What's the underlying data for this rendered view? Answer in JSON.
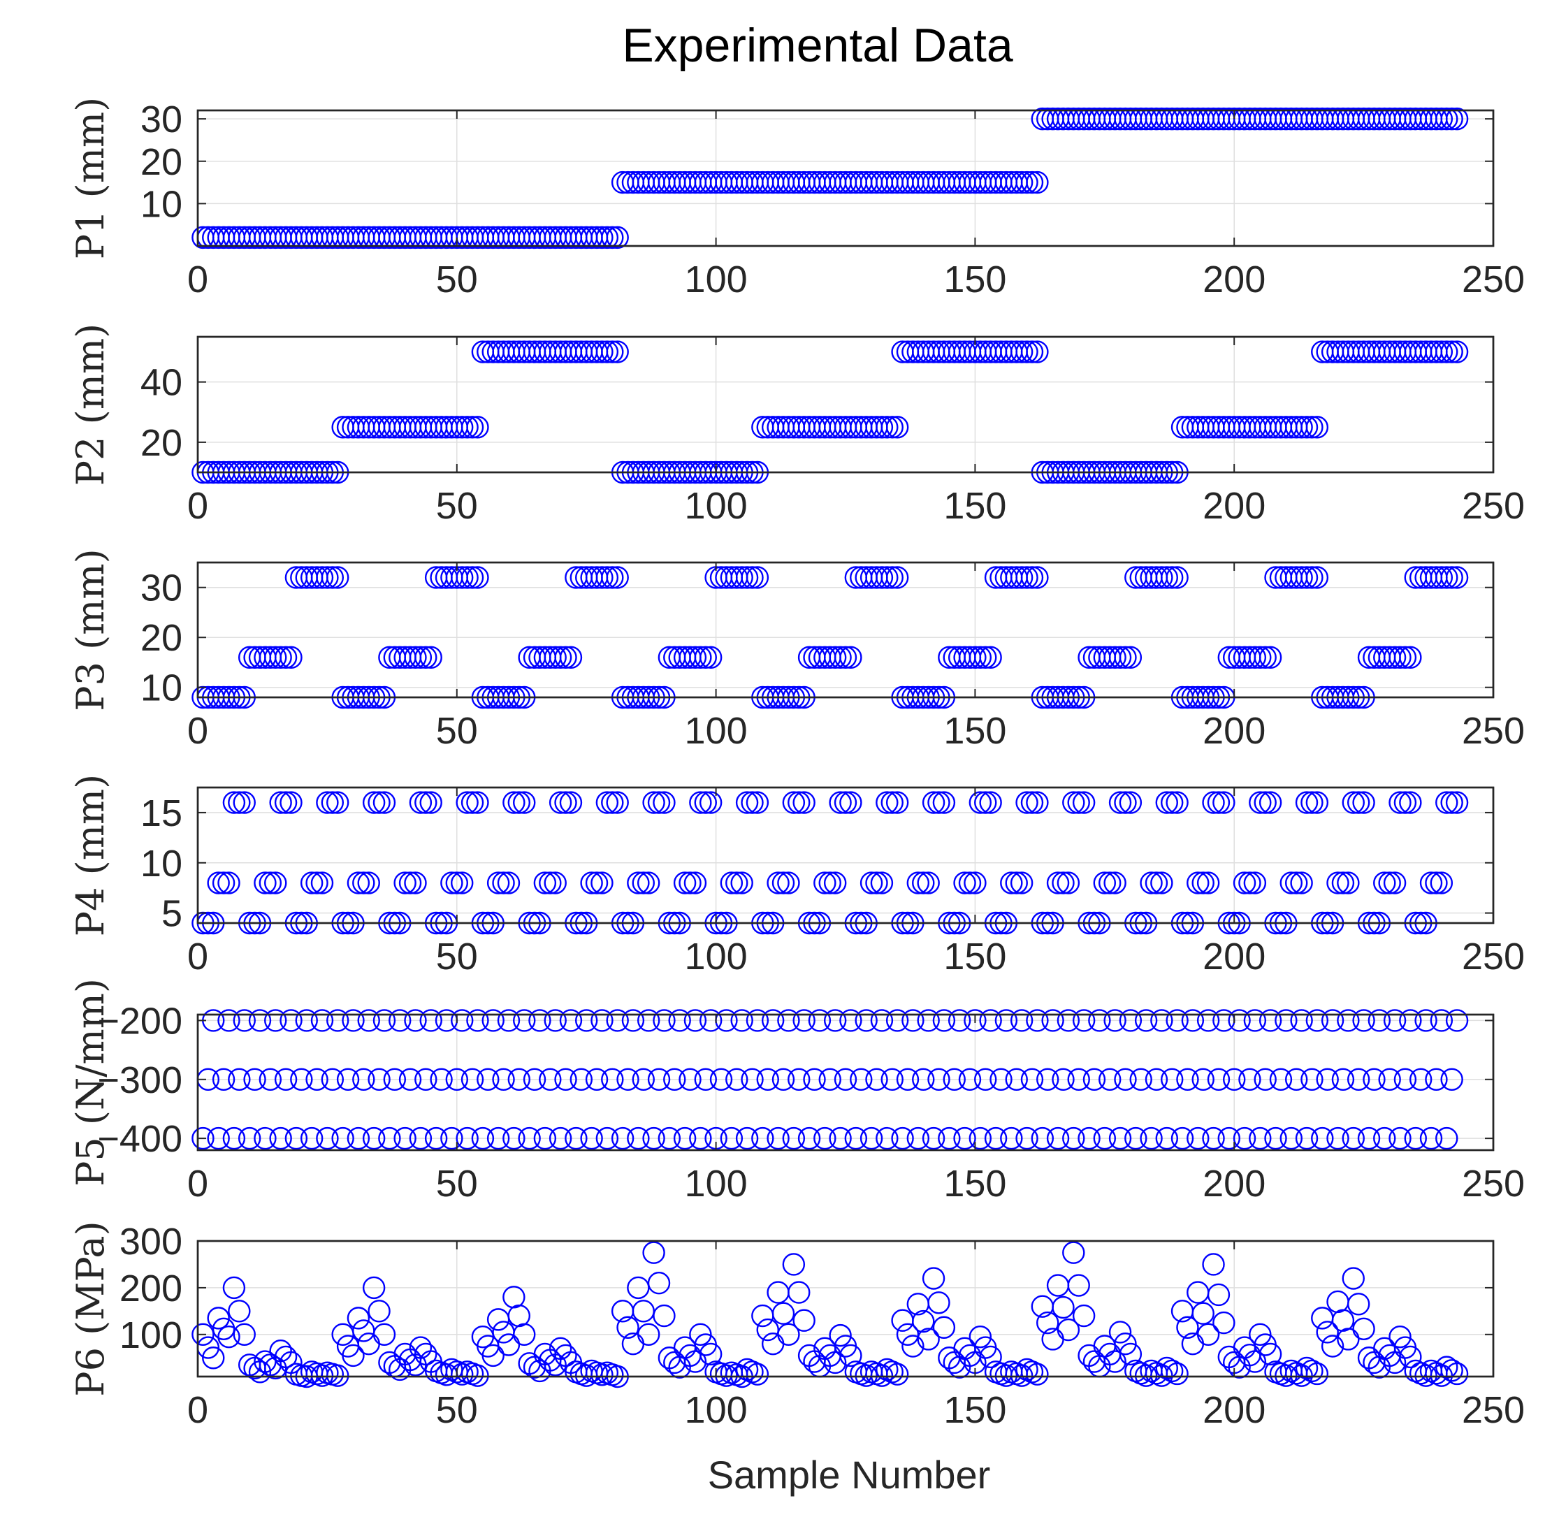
{
  "figure": {
    "title": "Experimental Data",
    "xlabel": "Sample Number",
    "marker_color": "#0000ff"
  },
  "chart_data": [
    {
      "id": "p1",
      "type": "scatter",
      "marker": "circle",
      "ylabel": "P1 (mm)",
      "xlim": [
        0,
        250
      ],
      "ylim": [
        0,
        32
      ],
      "xticks": [
        0,
        50,
        100,
        150,
        200,
        250
      ],
      "yticks": [
        10,
        20,
        30
      ],
      "grid": true,
      "series": [
        {
          "name": "P1",
          "segments": [
            {
              "x_start": 1,
              "x_end": 81,
              "y": 2
            },
            {
              "x_start": 82,
              "x_end": 162,
              "y": 15
            },
            {
              "x_start": 163,
              "x_end": 243,
              "y": 30
            }
          ]
        }
      ]
    },
    {
      "id": "p2",
      "type": "scatter",
      "marker": "circle",
      "ylabel": "P2 (mm)",
      "xlim": [
        0,
        250
      ],
      "ylim": [
        10,
        55
      ],
      "xticks": [
        0,
        50,
        100,
        150,
        200,
        250
      ],
      "yticks": [
        20,
        40
      ],
      "grid": true,
      "series": [
        {
          "name": "P2",
          "segments": [
            {
              "x_start": 1,
              "x_end": 27,
              "y": 10
            },
            {
              "x_start": 28,
              "x_end": 54,
              "y": 25
            },
            {
              "x_start": 55,
              "x_end": 81,
              "y": 50
            },
            {
              "x_start": 82,
              "x_end": 108,
              "y": 10
            },
            {
              "x_start": 109,
              "x_end": 135,
              "y": 25
            },
            {
              "x_start": 136,
              "x_end": 162,
              "y": 50
            },
            {
              "x_start": 163,
              "x_end": 189,
              "y": 10
            },
            {
              "x_start": 190,
              "x_end": 216,
              "y": 25
            },
            {
              "x_start": 217,
              "x_end": 243,
              "y": 50
            }
          ]
        }
      ]
    },
    {
      "id": "p3",
      "type": "scatter",
      "marker": "circle",
      "ylabel": "P3 (mm)",
      "xlim": [
        0,
        250
      ],
      "ylim": [
        8,
        35
      ],
      "xticks": [
        0,
        50,
        100,
        150,
        200,
        250
      ],
      "yticks": [
        10,
        20,
        30
      ],
      "grid": true,
      "series": [
        {
          "name": "P3",
          "repeating_pattern": {
            "levels": [
              8,
              16,
              32
            ],
            "run_length": 9,
            "x_start": 1,
            "x_end": 243
          }
        }
      ]
    },
    {
      "id": "p4",
      "type": "scatter",
      "marker": "circle",
      "ylabel": "P4 (mm)",
      "xlim": [
        0,
        250
      ],
      "ylim": [
        4,
        17.5
      ],
      "xticks": [
        0,
        50,
        100,
        150,
        200,
        250
      ],
      "yticks": [
        5,
        10,
        15
      ],
      "grid": true,
      "series": [
        {
          "name": "P4",
          "repeating_pattern": {
            "levels": [
              4,
              8,
              16
            ],
            "run_length": 3,
            "x_start": 1,
            "x_end": 243
          }
        }
      ]
    },
    {
      "id": "p5",
      "type": "scatter",
      "marker": "circle",
      "ylabel": "P5 (N/mm)",
      "xlim": [
        0,
        250
      ],
      "ylim": [
        -420,
        -190
      ],
      "xticks": [
        0,
        50,
        100,
        150,
        200,
        250
      ],
      "yticks": [
        -400,
        -300,
        -200
      ],
      "grid": true,
      "series": [
        {
          "name": "P5",
          "repeating_pattern": {
            "levels": [
              -400,
              -300,
              -200
            ],
            "run_length": 1,
            "x_start": 1,
            "x_end": 243
          }
        }
      ]
    },
    {
      "id": "p6",
      "type": "scatter",
      "marker": "circle",
      "ylabel": "P6 (MPa)",
      "xlim": [
        0,
        250
      ],
      "ylim": [
        10,
        300
      ],
      "xticks": [
        0,
        50,
        100,
        150,
        200,
        250
      ],
      "yticks": [
        100,
        200,
        300
      ],
      "grid": true,
      "series": [
        {
          "name": "P6",
          "x_start": 1,
          "y": [
            100,
            72,
            50,
            135,
            112,
            95,
            200,
            150,
            100,
            35,
            28,
            20,
            42,
            35,
            28,
            65,
            52,
            40,
            15,
            12,
            10,
            20,
            16,
            12,
            18,
            15,
            12,
            100,
            75,
            55,
            135,
            108,
            80,
            200,
            150,
            100,
            40,
            32,
            25,
            58,
            46,
            35,
            72,
            58,
            42,
            22,
            18,
            14,
            25,
            20,
            15,
            20,
            16,
            12,
            95,
            75,
            55,
            132,
            105,
            78,
            180,
            140,
            100,
            38,
            30,
            22,
            58,
            45,
            35,
            70,
            55,
            40,
            20,
            16,
            12,
            22,
            18,
            14,
            18,
            14,
            10,
            150,
            115,
            80,
            200,
            150,
            100,
            275,
            210,
            140,
            50,
            40,
            30,
            72,
            55,
            42,
            100,
            78,
            58,
            20,
            16,
            12,
            18,
            14,
            10,
            25,
            20,
            15,
            140,
            110,
            80,
            190,
            145,
            100,
            250,
            190,
            130,
            55,
            42,
            32,
            70,
            55,
            40,
            98,
            75,
            55,
            20,
            16,
            12,
            20,
            16,
            12,
            25,
            20,
            15,
            130,
            100,
            75,
            165,
            128,
            90,
            220,
            168,
            115,
            50,
            40,
            30,
            70,
            55,
            40,
            95,
            72,
            52,
            20,
            16,
            12,
            20,
            16,
            12,
            25,
            20,
            15,
            160,
            125,
            90,
            205,
            158,
            110,
            275,
            205,
            140,
            55,
            42,
            32,
            75,
            58,
            42,
            105,
            80,
            58,
            22,
            17,
            12,
            22,
            17,
            12,
            28,
            22,
            16,
            150,
            115,
            80,
            190,
            145,
            100,
            250,
            185,
            125,
            52,
            40,
            30,
            72,
            56,
            42,
            100,
            78,
            58,
            20,
            16,
            12,
            22,
            17,
            12,
            28,
            22,
            16,
            135,
            105,
            75,
            170,
            130,
            90,
            220,
            165,
            112,
            50,
            40,
            30,
            70,
            55,
            40,
            95,
            72,
            52,
            22,
            17,
            12,
            22,
            17,
            12,
            30,
            23,
            16
          ]
        }
      ]
    }
  ]
}
